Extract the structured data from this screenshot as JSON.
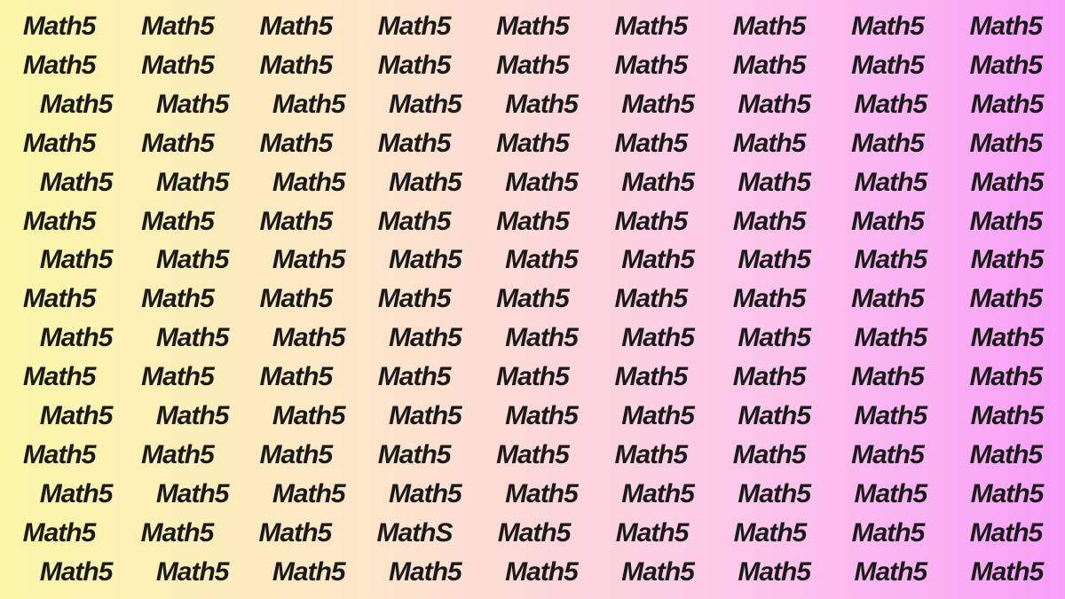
{
  "puzzle": {
    "type": "infographic",
    "description": "word-search-illusion",
    "background_gradient": {
      "direction": "90deg",
      "stops": [
        "#fbf7a8",
        "#fde5ca",
        "#fcc8ea",
        "#f8a0f8"
      ],
      "positions": [
        0,
        35,
        70,
        100
      ]
    },
    "text_color": "#1a1a1a",
    "font_size": 30,
    "font_weight": 900,
    "font_style": "italic",
    "columns": 9,
    "rows": 15,
    "default_word": "Math5",
    "odd_word": "MathS",
    "odd_position": {
      "row": 13,
      "col": 3
    },
    "row_offsets": [
      false,
      false,
      true,
      false,
      true,
      false,
      true,
      false,
      true,
      false,
      true,
      false,
      true,
      false,
      true
    ],
    "grid": [
      [
        "Math5",
        "Math5",
        "Math5",
        "Math5",
        "Math5",
        "Math5",
        "Math5",
        "Math5",
        "Math5"
      ],
      [
        "Math5",
        "Math5",
        "Math5",
        "Math5",
        "Math5",
        "Math5",
        "Math5",
        "Math5",
        "Math5"
      ],
      [
        "Math5",
        "Math5",
        "Math5",
        "Math5",
        "Math5",
        "Math5",
        "Math5",
        "Math5",
        "Math5"
      ],
      [
        "Math5",
        "Math5",
        "Math5",
        "Math5",
        "Math5",
        "Math5",
        "Math5",
        "Math5",
        "Math5"
      ],
      [
        "Math5",
        "Math5",
        "Math5",
        "Math5",
        "Math5",
        "Math5",
        "Math5",
        "Math5",
        "Math5"
      ],
      [
        "Math5",
        "Math5",
        "Math5",
        "Math5",
        "Math5",
        "Math5",
        "Math5",
        "Math5",
        "Math5"
      ],
      [
        "Math5",
        "Math5",
        "Math5",
        "Math5",
        "Math5",
        "Math5",
        "Math5",
        "Math5",
        "Math5"
      ],
      [
        "Math5",
        "Math5",
        "Math5",
        "Math5",
        "Math5",
        "Math5",
        "Math5",
        "Math5",
        "Math5"
      ],
      [
        "Math5",
        "Math5",
        "Math5",
        "Math5",
        "Math5",
        "Math5",
        "Math5",
        "Math5",
        "Math5"
      ],
      [
        "Math5",
        "Math5",
        "Math5",
        "Math5",
        "Math5",
        "Math5",
        "Math5",
        "Math5",
        "Math5"
      ],
      [
        "Math5",
        "Math5",
        "Math5",
        "Math5",
        "Math5",
        "Math5",
        "Math5",
        "Math5",
        "Math5"
      ],
      [
        "Math5",
        "Math5",
        "Math5",
        "Math5",
        "Math5",
        "Math5",
        "Math5",
        "Math5",
        "Math5"
      ],
      [
        "Math5",
        "Math5",
        "Math5",
        "Math5",
        "Math5",
        "Math5",
        "Math5",
        "Math5",
        "Math5"
      ],
      [
        "Math5",
        "Math5",
        "Math5",
        "MathS",
        "Math5",
        "Math5",
        "Math5",
        "Math5",
        "Math5"
      ],
      [
        "Math5",
        "Math5",
        "Math5",
        "Math5",
        "Math5",
        "Math5",
        "Math5",
        "Math5",
        "Math5"
      ]
    ]
  }
}
